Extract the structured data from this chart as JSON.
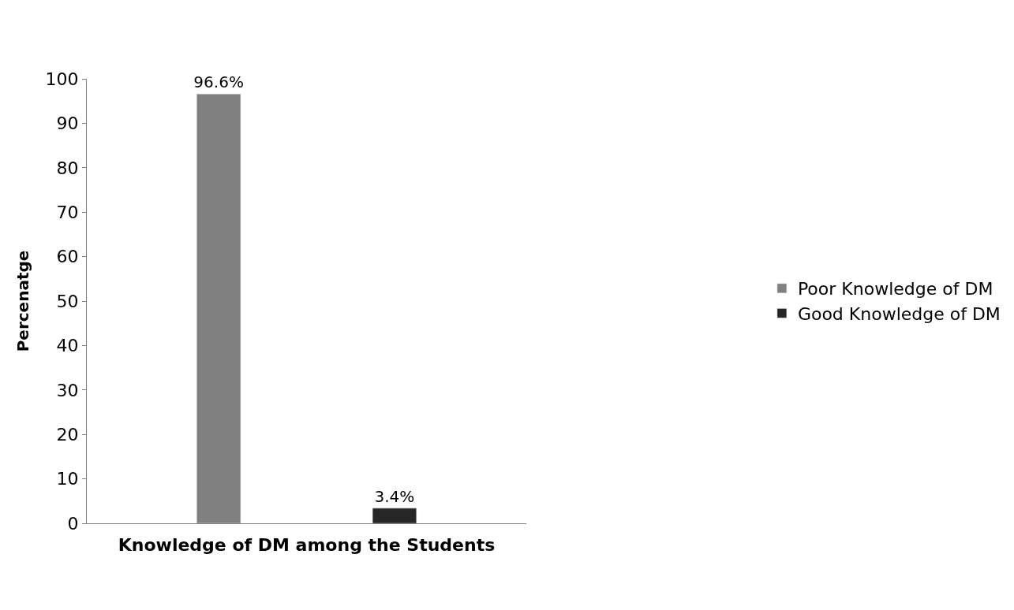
{
  "chart_data": {
    "type": "bar",
    "xlabel": "Knowledge of DM among the Students",
    "ylabel": "Percenatge",
    "categories": [
      null
    ],
    "series": [
      {
        "name": "Poor Knowledge of DM",
        "color": "#808080",
        "values": [
          96.6
        ],
        "value_labels": [
          "96.6%"
        ]
      },
      {
        "name": "Good Knowledge of DM",
        "color": "#262626",
        "values": [
          3.4
        ],
        "value_labels": [
          "3.4%"
        ]
      }
    ],
    "ylim": [
      0,
      100
    ],
    "yticks": [
      0,
      10,
      20,
      30,
      40,
      50,
      60,
      70,
      80,
      90,
      100
    ],
    "grid": false,
    "legend": "right"
  }
}
